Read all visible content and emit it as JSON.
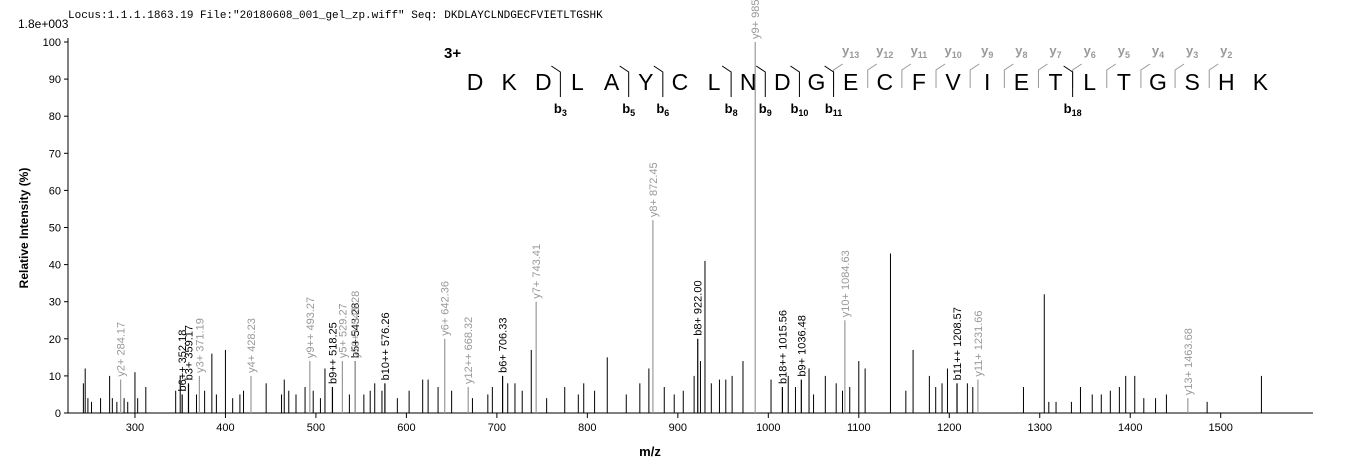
{
  "chart_data": {
    "type": "spectrum",
    "title": "Locus:1.1.1.1863.19 File:\"20180608_001_gel_zp.wiff\"   Seq: DKDLAYCLNDGECFVIETLTGSHK",
    "y_scale_label": "1.8e+003",
    "y_axis_label": "Relative   Intensity (%)",
    "x_axis_label": "m/z",
    "xlim": [
      226,
      1602
    ],
    "ylim": [
      0,
      100
    ],
    "xticks": [
      300,
      400,
      500,
      600,
      700,
      800,
      900,
      1000,
      1100,
      1200,
      1300,
      1400,
      1500
    ],
    "yticks": [
      0,
      10,
      20,
      30,
      40,
      50,
      60,
      70,
      80,
      90,
      100
    ],
    "peak_color": "#000000",
    "peaks": {
      "x": [
        243,
        245,
        248,
        252,
        262,
        272,
        275,
        280,
        288,
        292,
        300,
        303,
        312,
        345,
        350,
        368,
        377,
        385,
        390,
        400,
        408,
        416,
        420,
        445,
        462,
        465,
        470,
        478,
        488,
        497,
        505,
        510,
        537,
        553,
        560,
        565,
        573,
        590,
        603,
        618,
        624,
        635,
        650,
        673,
        690,
        695,
        712,
        720,
        728,
        738,
        755,
        775,
        790,
        796,
        808,
        822,
        843,
        858,
        868,
        885,
        896,
        906,
        918,
        925,
        930,
        937,
        946,
        953,
        960,
        972,
        1003,
        1022,
        1030,
        1045,
        1050,
        1063,
        1075,
        1082,
        1090,
        1100,
        1107,
        1135,
        1152,
        1160,
        1178,
        1185,
        1192,
        1198,
        1220,
        1226,
        1282,
        1305,
        1310,
        1318,
        1335,
        1345,
        1358,
        1368,
        1378,
        1388,
        1395,
        1405,
        1415,
        1428,
        1440,
        1485,
        1545
      ],
      "values": [
        8,
        12,
        4,
        3,
        4,
        10,
        4,
        3,
        4,
        3,
        11,
        4,
        7,
        6,
        10,
        5,
        6,
        16,
        5,
        17,
        4,
        5,
        6,
        8,
        5,
        9,
        6,
        5,
        7,
        6,
        4,
        12,
        5,
        5,
        6,
        8,
        6,
        4,
        6,
        9,
        9,
        7,
        6,
        4,
        5,
        7,
        8,
        8,
        6,
        17,
        4,
        7,
        5,
        8,
        6,
        15,
        5,
        8,
        12,
        7,
        5,
        6,
        10,
        14,
        41,
        8,
        9,
        9,
        10,
        14,
        9,
        10,
        7,
        12,
        5,
        10,
        8,
        6,
        7,
        14,
        12,
        43,
        6,
        17,
        10,
        7,
        8,
        12,
        8,
        7,
        7,
        32,
        3,
        3,
        3,
        7,
        5,
        5,
        6,
        7,
        10,
        10,
        4,
        4,
        5,
        3,
        10
      ]
    },
    "annotations": [
      {
        "label": "y2+ 284.17",
        "x": 284.17,
        "value": 9,
        "color": "#999999"
      },
      {
        "label": "b6++ 352.18",
        "x": 352.18,
        "value": 5,
        "color": "#000000"
      },
      {
        "label": "b3+ 359.17",
        "x": 359.17,
        "value": 8,
        "color": "#000000"
      },
      {
        "label": "y3+ 371.19",
        "x": 371.19,
        "value": 10,
        "color": "#999999"
      },
      {
        "label": "y4+ 428.23",
        "x": 428.23,
        "value": 10,
        "color": "#999999"
      },
      {
        "label": "y9++ 493.27",
        "x": 493.27,
        "value": 14,
        "color": "#999999"
      },
      {
        "label": "b9++ 518.25",
        "x": 518.25,
        "value": 7,
        "color": "#000000"
      },
      {
        "label": "y5+ 529.27",
        "x": 529.27,
        "value": 14,
        "color": "#999999"
      },
      {
        "label": "b5+ 543.28",
        "x": 543.28,
        "value": 14,
        "color": "#000000"
      },
      {
        "label": "y10++ 543.28",
        "x": 543.28,
        "value": 14,
        "color": "#999999"
      },
      {
        "label": "b10++ 576.26",
        "x": 576.26,
        "value": 8,
        "color": "#000000"
      },
      {
        "label": "y6+ 642.36",
        "x": 642.36,
        "value": 20,
        "color": "#999999"
      },
      {
        "label": "y12++ 668.32",
        "x": 668.32,
        "value": 7,
        "color": "#999999"
      },
      {
        "label": "b6+ 706.33",
        "x": 706.33,
        "value": 10,
        "color": "#000000"
      },
      {
        "label": "y7+ 743.41",
        "x": 743.41,
        "value": 30,
        "color": "#999999"
      },
      {
        "label": "y8+ 872.45",
        "x": 872.45,
        "value": 52,
        "color": "#999999"
      },
      {
        "label": "b8+ 922.00",
        "x": 922.0,
        "value": 20,
        "color": "#000000"
      },
      {
        "label": "y9+ 985.53",
        "x": 985.53,
        "value": 100,
        "color": "#999999"
      },
      {
        "label": "b18++ 1015.56",
        "x": 1015.56,
        "value": 7,
        "color": "#000000"
      },
      {
        "label": "b9+ 1036.48",
        "x": 1036.48,
        "value": 9,
        "color": "#000000"
      },
      {
        "label": "y10+ 1084.63",
        "x": 1084.63,
        "value": 25,
        "color": "#999999"
      },
      {
        "label": "b11++ 1208.57",
        "x": 1208.57,
        "value": 8,
        "color": "#000000"
      },
      {
        "label": "y11+ 1231.66",
        "x": 1231.66,
        "value": 9,
        "color": "#999999"
      },
      {
        "label": "y13+ 1463.68",
        "x": 1463.68,
        "value": 4,
        "color": "#999999"
      }
    ],
    "charge_label": "3+",
    "sequence": [
      "D",
      "K",
      "D",
      "L",
      "A",
      "Y",
      "C",
      "L",
      "N",
      "D",
      "G",
      "E",
      "C",
      "F",
      "V",
      "I",
      "E",
      "T",
      "L",
      "T",
      "G",
      "S",
      "H",
      "K"
    ],
    "y_ion_prefix": "y",
    "y_ions": [
      13,
      12,
      11,
      10,
      9,
      8,
      7,
      6,
      5,
      4,
      3,
      2
    ],
    "b_ion_prefix": "b",
    "b_ions": [
      3,
      5,
      6,
      8,
      9,
      10,
      11,
      18
    ]
  }
}
